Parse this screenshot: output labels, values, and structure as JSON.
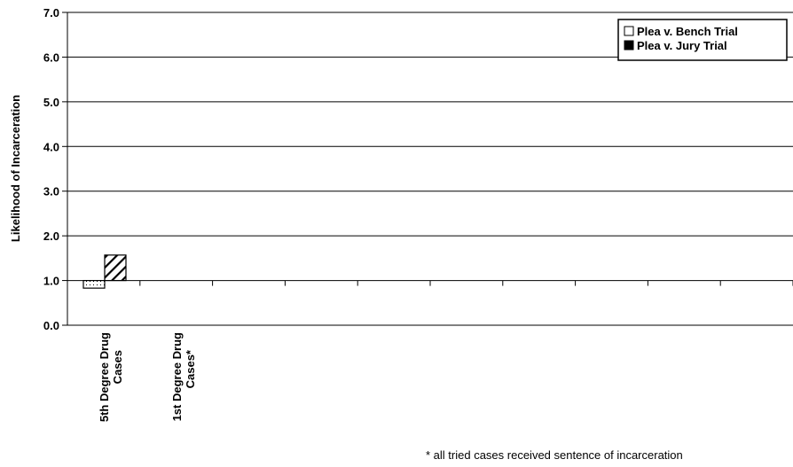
{
  "chart_data": {
    "type": "bar",
    "ylabel": "Likelihood of Incarceration",
    "xlabel": "",
    "ylim": [
      0,
      7
    ],
    "y_ticks": [
      "0.0",
      "1.0",
      "2.0",
      "3.0",
      "4.0",
      "5.0",
      "6.0",
      "7.0"
    ],
    "baseline": 1.0,
    "grid": true,
    "legend_position": "top-right",
    "categories": [
      {
        "line1": "5th Degree Drug",
        "line2": "Cases"
      },
      {
        "line1": "1st Degree Drug",
        "line2": "Cases*"
      }
    ],
    "series": [
      {
        "name": "Plea v. Bench Trial",
        "values": [
          0.83,
          null
        ]
      },
      {
        "name": "Plea v. Jury Trial",
        "values": [
          1.57,
          null
        ]
      }
    ],
    "footnote": "*  all tried cases received sentence of incarceration"
  }
}
